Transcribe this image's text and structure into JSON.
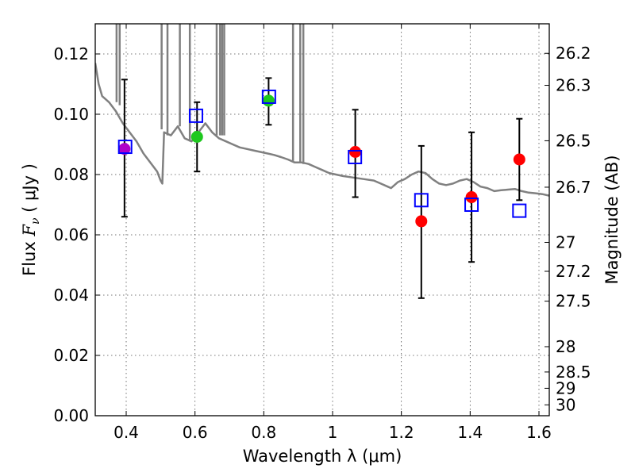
{
  "chart_data": {
    "type": "scatter",
    "xlabel": "Wavelength  λ (μm)",
    "ylabel_prefix": "Flux  ",
    "ylabel_var": "F",
    "ylabel_sub": "ν",
    "ylabel_suffix": "  ( μJy )",
    "y2label": "Magnitude (AB)",
    "xlim": [
      0.31,
      1.63
    ],
    "ylim": [
      0.0,
      0.13
    ],
    "grid": true,
    "xticks": [
      {
        "value": 0.4,
        "label": "0.4"
      },
      {
        "value": 0.6,
        "label": "0.6"
      },
      {
        "value": 0.8,
        "label": "0.8"
      },
      {
        "value": 1.0,
        "label": "1"
      },
      {
        "value": 1.2,
        "label": "1.2"
      },
      {
        "value": 1.4,
        "label": "1.4"
      },
      {
        "value": 1.6,
        "label": "1.6"
      }
    ],
    "yticks": [
      {
        "value": 0.0,
        "label": "0.00"
      },
      {
        "value": 0.02,
        "label": "0.02"
      },
      {
        "value": 0.04,
        "label": "0.04"
      },
      {
        "value": 0.06,
        "label": "0.06"
      },
      {
        "value": 0.08,
        "label": "0.08"
      },
      {
        "value": 0.1,
        "label": "0.10"
      },
      {
        "value": 0.12,
        "label": "0.12"
      }
    ],
    "magnitude_ticks": [
      {
        "flux": 0.1202,
        "label": "26.2"
      },
      {
        "flux": 0.1096,
        "label": "26.3"
      },
      {
        "flux": 0.0912,
        "label": "26.5"
      },
      {
        "flux": 0.0758,
        "label": "26.7"
      },
      {
        "flux": 0.0575,
        "label": "27"
      },
      {
        "flux": 0.0479,
        "label": "27.2"
      },
      {
        "flux": 0.038,
        "label": "27.5"
      },
      {
        "flux": 0.0229,
        "label": "28"
      },
      {
        "flux": 0.0145,
        "label": "28.5"
      },
      {
        "flux": 0.0091,
        "label": "29"
      },
      {
        "flux": 0.0036,
        "label": "30"
      }
    ],
    "observed": [
      {
        "x": 0.395,
        "y": 0.0885,
        "yerr": [
          0.066,
          0.1115
        ],
        "color": "#b000c8"
      },
      {
        "x": 0.606,
        "y": 0.0925,
        "yerr": [
          0.081,
          0.104
        ],
        "color": "#1ec81e"
      },
      {
        "x": 0.814,
        "y": 0.1045,
        "yerr": [
          0.0965,
          0.112
        ],
        "color": "#1ec81e"
      },
      {
        "x": 1.066,
        "y": 0.0875,
        "yerr": [
          0.0725,
          0.1015
        ],
        "color": "#ff0000"
      },
      {
        "x": 1.258,
        "y": 0.0645,
        "yerr": [
          0.039,
          0.0895
        ],
        "color": "#ff0000"
      },
      {
        "x": 1.404,
        "y": 0.0725,
        "yerr": [
          0.051,
          0.094
        ],
        "color": "#ff0000"
      },
      {
        "x": 1.543,
        "y": 0.085,
        "yerr": [
          0.0715,
          0.0985
        ],
        "color": "#ff0000"
      }
    ],
    "model": [
      {
        "x": 0.397,
        "y": 0.0892
      },
      {
        "x": 0.603,
        "y": 0.0995
      },
      {
        "x": 0.815,
        "y": 0.1058
      },
      {
        "x": 1.065,
        "y": 0.0858
      },
      {
        "x": 1.258,
        "y": 0.0715
      },
      {
        "x": 1.404,
        "y": 0.07
      },
      {
        "x": 1.543,
        "y": 0.068
      }
    ],
    "sed_curve": [
      [
        0.31,
        0.117
      ],
      [
        0.32,
        0.11
      ],
      [
        0.33,
        0.106
      ],
      [
        0.35,
        0.104
      ],
      [
        0.37,
        0.101
      ],
      [
        0.39,
        0.097
      ],
      [
        0.41,
        0.094
      ],
      [
        0.43,
        0.091
      ],
      [
        0.45,
        0.087
      ],
      [
        0.47,
        0.084
      ],
      [
        0.49,
        0.081
      ],
      [
        0.5,
        0.078
      ],
      [
        0.505,
        0.077
      ],
      [
        0.51,
        0.094
      ],
      [
        0.53,
        0.093
      ],
      [
        0.55,
        0.096
      ],
      [
        0.57,
        0.092
      ],
      [
        0.59,
        0.091
      ],
      [
        0.61,
        0.094
      ],
      [
        0.63,
        0.097
      ],
      [
        0.65,
        0.094
      ],
      [
        0.67,
        0.092
      ],
      [
        0.69,
        0.091
      ],
      [
        0.71,
        0.09
      ],
      [
        0.73,
        0.089
      ],
      [
        0.75,
        0.0885
      ],
      [
        0.77,
        0.088
      ],
      [
        0.79,
        0.0875
      ],
      [
        0.81,
        0.087
      ],
      [
        0.83,
        0.0865
      ],
      [
        0.85,
        0.0858
      ],
      [
        0.87,
        0.085
      ],
      [
        0.89,
        0.084
      ],
      [
        0.91,
        0.084
      ],
      [
        0.93,
        0.0835
      ],
      [
        0.95,
        0.0825
      ],
      [
        0.97,
        0.0815
      ],
      [
        0.99,
        0.0805
      ],
      [
        1.01,
        0.08
      ],
      [
        1.03,
        0.0795
      ],
      [
        1.06,
        0.079
      ],
      [
        1.09,
        0.0785
      ],
      [
        1.12,
        0.078
      ],
      [
        1.14,
        0.077
      ],
      [
        1.16,
        0.076
      ],
      [
        1.17,
        0.0755
      ],
      [
        1.18,
        0.0765
      ],
      [
        1.19,
        0.0775
      ],
      [
        1.21,
        0.0785
      ],
      [
        1.23,
        0.08
      ],
      [
        1.25,
        0.081
      ],
      [
        1.27,
        0.0805
      ],
      [
        1.29,
        0.0785
      ],
      [
        1.31,
        0.077
      ],
      [
        1.33,
        0.0765
      ],
      [
        1.35,
        0.077
      ],
      [
        1.37,
        0.078
      ],
      [
        1.39,
        0.0785
      ],
      [
        1.41,
        0.0775
      ],
      [
        1.43,
        0.076
      ],
      [
        1.45,
        0.0755
      ],
      [
        1.47,
        0.0745
      ],
      [
        1.49,
        0.0748
      ],
      [
        1.51,
        0.075
      ],
      [
        1.53,
        0.0752
      ],
      [
        1.55,
        0.0745
      ],
      [
        1.57,
        0.074
      ],
      [
        1.59,
        0.0738
      ],
      [
        1.61,
        0.0735
      ],
      [
        1.63,
        0.073
      ]
    ],
    "emission_spikes": [
      {
        "x": 0.372,
        "ylow": 0.104
      },
      {
        "x": 0.381,
        "ylow": 0.103
      },
      {
        "x": 0.503,
        "ylow": 0.095
      },
      {
        "x": 0.52,
        "ylow": 0.093
      },
      {
        "x": 0.556,
        "ylow": 0.096
      },
      {
        "x": 0.585,
        "ylow": 0.091
      },
      {
        "x": 0.663,
        "ylow": 0.093
      },
      {
        "x": 0.673,
        "ylow": 0.093
      },
      {
        "x": 0.679,
        "ylow": 0.093
      },
      {
        "x": 0.685,
        "ylow": 0.093
      },
      {
        "x": 0.885,
        "ylow": 0.0845
      },
      {
        "x": 0.906,
        "ylow": 0.084
      },
      {
        "x": 0.915,
        "ylow": 0.0835
      }
    ],
    "colors": {
      "curve": "#808080",
      "model_marker": "#0000ff",
      "errorbar": "#000000"
    }
  }
}
